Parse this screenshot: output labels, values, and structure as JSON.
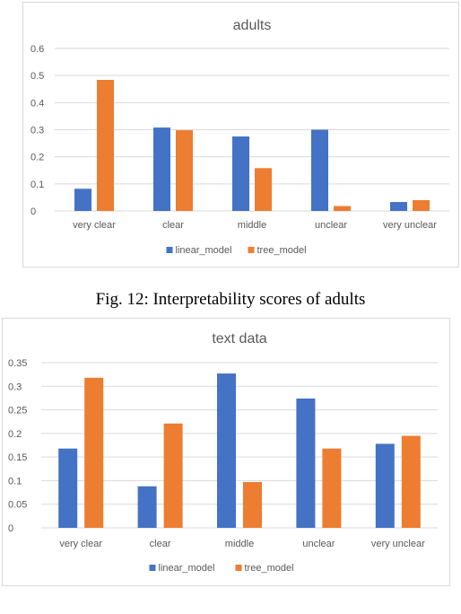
{
  "caption": "Fig. 12: Interpretability scores of adults",
  "colors": {
    "linear": "#4472C4",
    "tree": "#ED7D31"
  },
  "chart_data": [
    {
      "type": "bar",
      "title": "adults",
      "categories": [
        "very clear",
        "clear",
        "middle",
        "unclear",
        "very unclear"
      ],
      "series": [
        {
          "name": "linear_model",
          "values": [
            0.082,
            0.308,
            0.275,
            0.3,
            0.033
          ]
        },
        {
          "name": "tree_model",
          "values": [
            0.484,
            0.298,
            0.158,
            0.018,
            0.04
          ]
        }
      ],
      "ylim": [
        0,
        0.6
      ],
      "yticks": [
        "0",
        "0.1",
        "0.2",
        "0.3",
        "0.4",
        "0.5",
        "0.6"
      ],
      "ytick_values": [
        0,
        0.1,
        0.2,
        0.3,
        0.4,
        0.5,
        0.6
      ],
      "grid": true,
      "legend": "bottom"
    },
    {
      "type": "bar",
      "title": "text data",
      "categories": [
        "very clear",
        "clear",
        "middle",
        "unclear",
        "very unclear"
      ],
      "series": [
        {
          "name": "linear_model",
          "values": [
            0.168,
            0.088,
            0.327,
            0.274,
            0.178
          ]
        },
        {
          "name": "tree_model",
          "values": [
            0.318,
            0.221,
            0.097,
            0.168,
            0.195
          ]
        }
      ],
      "ylim": [
        0,
        0.35
      ],
      "yticks": [
        "0",
        "0.05",
        "0.1",
        "0.15",
        "0.2",
        "0.25",
        "0.3",
        "0.35"
      ],
      "ytick_values": [
        0,
        0.05,
        0.1,
        0.15,
        0.2,
        0.25,
        0.3,
        0.35
      ],
      "grid": true,
      "legend": "bottom"
    }
  ]
}
